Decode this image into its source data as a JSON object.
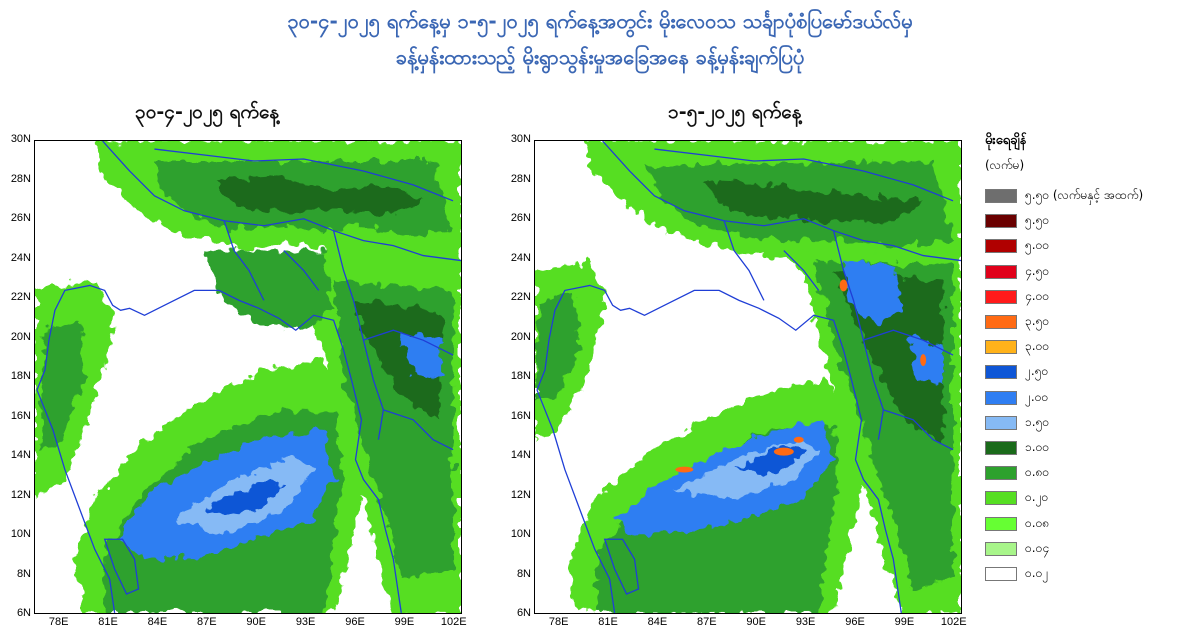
{
  "title": {
    "line1": "၃၀-၄-၂၀၂၅ ရက်နေ့မှ ၁-၅-၂၀၂၅ ရက်နေ့အတွင်း မိုးလေဝသ သင်္ချာပုံစံပြမော်ဒယ်လ်မှ",
    "line2": "ခန့်မှန်းထားသည့် မိုးရွာသွန်းမှုအခြေအနေ ခန့်မှန်းချက်ပြပုံ"
  },
  "panels": [
    {
      "label": "၃၀-၄-၂၀၂၅ ရက်နေ့"
    },
    {
      "label": "၁-၅-၂၀၂၅ ရက်နေ့"
    }
  ],
  "axes": {
    "lat_ticks": [
      "30N",
      "28N",
      "26N",
      "24N",
      "22N",
      "20N",
      "18N",
      "16N",
      "14N",
      "12N",
      "10N",
      "8N",
      "6N"
    ],
    "lon_ticks": [
      "78E",
      "81E",
      "84E",
      "87E",
      "90E",
      "93E",
      "96E",
      "99E",
      "102E"
    ],
    "lat_range": [
      6,
      30
    ],
    "lon_range": [
      76.5,
      102.5
    ]
  },
  "legend": {
    "title": "မိုးရေချိန်",
    "unit": "(လက်မ)",
    "items": [
      {
        "label": "၅.၅၀ (လက်မနှင့် အထက်)",
        "color": "#6e6e6e"
      },
      {
        "label": "၅.၅၀",
        "color": "#6a0000"
      },
      {
        "label": "၅.၀၀",
        "color": "#b00000"
      },
      {
        "label": "၄.၅၀",
        "color": "#e0001a"
      },
      {
        "label": "၄.၀၀",
        "color": "#ff1a1a"
      },
      {
        "label": "၃.၅၀",
        "color": "#ff6a13"
      },
      {
        "label": "၃.၀၀",
        "color": "#ffb21a"
      },
      {
        "label": "၂.၅၀",
        "color": "#0e56d6"
      },
      {
        "label": "၂.၀၀",
        "color": "#2f7ef2"
      },
      {
        "label": "၁.၅၀",
        "color": "#86baf5"
      },
      {
        "label": "၁.၀၀",
        "color": "#1a6a1a"
      },
      {
        "label": "၀.၈၀",
        "color": "#2da12d"
      },
      {
        "label": "၀.၂၀",
        "color": "#56de22"
      },
      {
        "label": "၀.၀၈",
        "color": "#66ff33"
      },
      {
        "label": "၀.၀၄",
        "color": "#a8f58a"
      },
      {
        "label": "၀.၀၂",
        "color": "#ffffff"
      }
    ]
  }
}
